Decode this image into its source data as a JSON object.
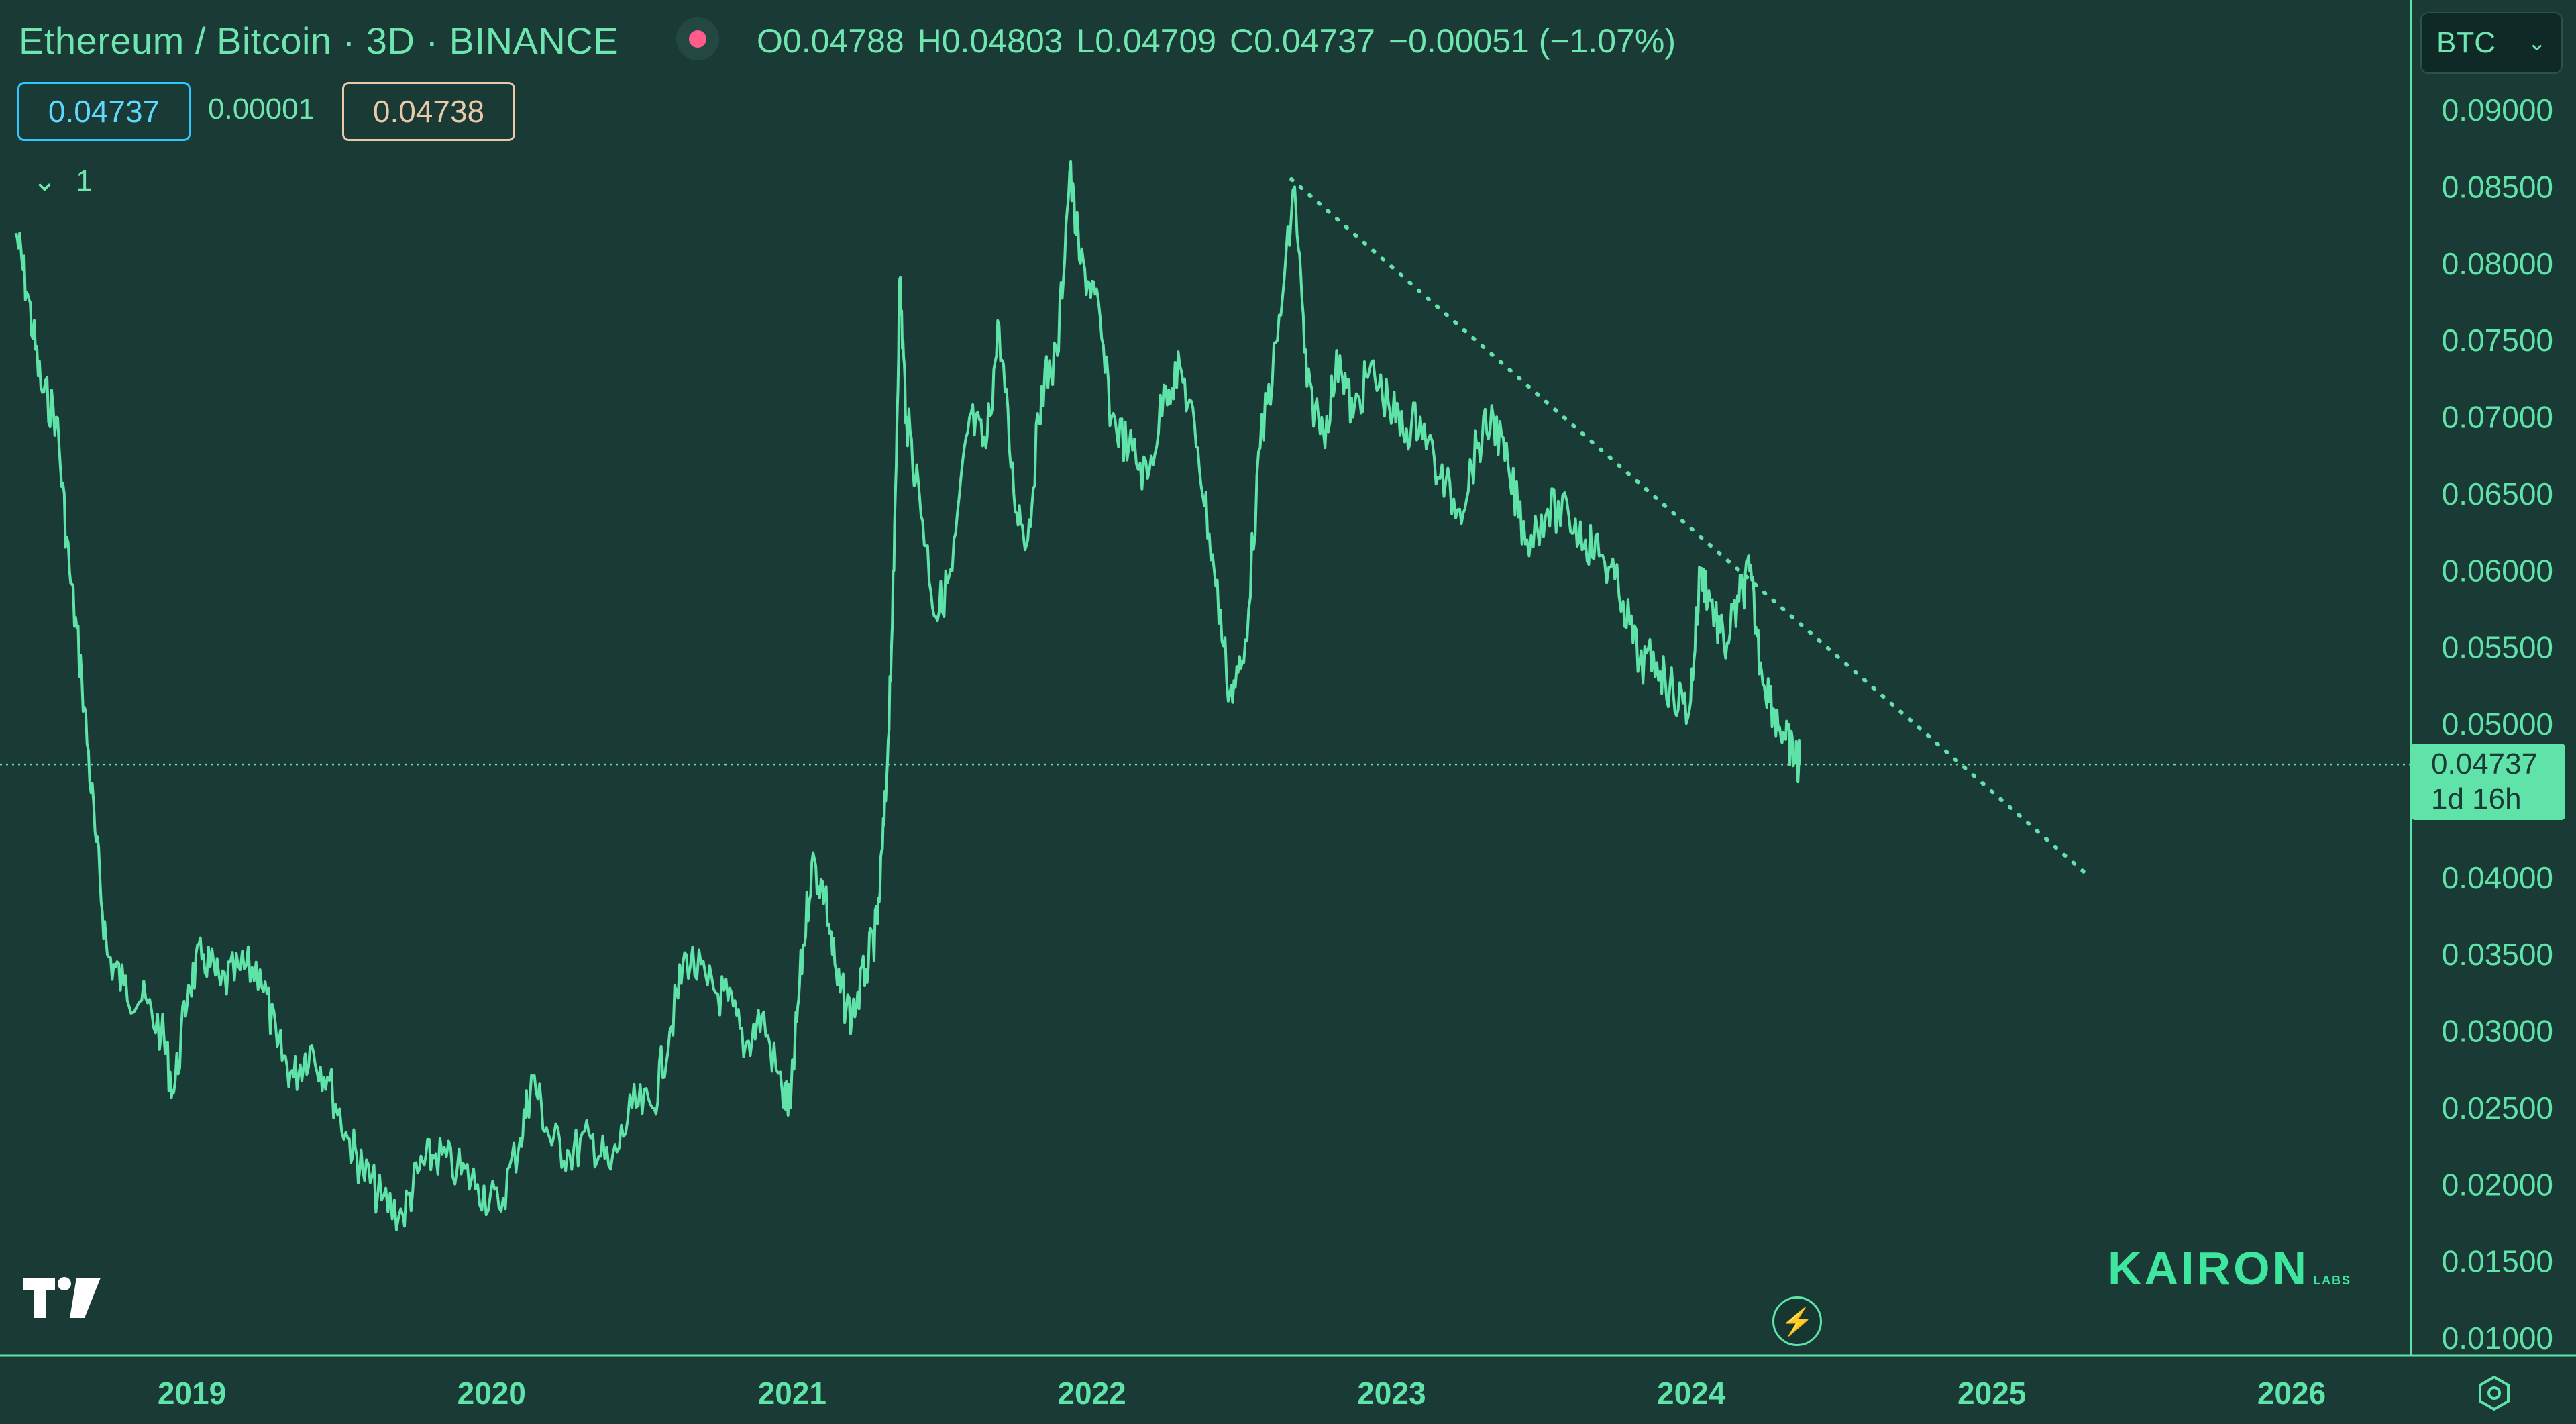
{
  "header": {
    "title": "Ethereum / Bitcoin · 3D · BINANCE",
    "ohlc": {
      "open": "O0.04788",
      "high": "H0.04803",
      "low": "L0.04709",
      "close": "C0.04737",
      "change": "−0.00051 (−1.07%)"
    },
    "bid": "0.04737",
    "spread": "0.00001",
    "ask": "0.04738",
    "indicator_toggle": "1",
    "currency": "BTC"
  },
  "price_tag": {
    "price": "0.04737",
    "countdown": "1d 16h"
  },
  "brand": {
    "name": "KAIRON",
    "suffix": "LABS"
  },
  "icons": {
    "logo": "tradingview-logo-icon",
    "status": "market-status-dot-icon",
    "lightning": "lightning-icon",
    "settings": "settings-gear-icon",
    "currency": "chevron-down-icon"
  },
  "colors": {
    "background": "#1a3a35",
    "line": "#5fe3a8",
    "bid": "#2ec7ff",
    "ask": "#e8c9a8",
    "status_dot": "#ff5c8a"
  },
  "chart_data": {
    "type": "line",
    "title": "Ethereum / Bitcoin · 3D · BINANCE",
    "series": [
      {
        "values": [
          [
            "2018-06-01",
            0.082
          ],
          [
            "2018-06-15",
            0.078
          ],
          [
            "2018-07-01",
            0.072
          ],
          [
            "2018-07-20",
            0.07
          ],
          [
            "2018-08-05",
            0.06
          ],
          [
            "2018-08-20",
            0.053
          ],
          [
            "2018-09-05",
            0.043
          ],
          [
            "2018-09-20",
            0.035
          ],
          [
            "2018-10-10",
            0.033
          ],
          [
            "2018-11-01",
            0.032
          ],
          [
            "2018-11-25",
            0.03
          ],
          [
            "2018-12-10",
            0.026
          ],
          [
            "2018-12-28",
            0.033
          ],
          [
            "2019-01-15",
            0.035
          ],
          [
            "2019-02-05",
            0.033
          ],
          [
            "2019-03-01",
            0.034
          ],
          [
            "2019-03-25",
            0.034
          ],
          [
            "2019-04-15",
            0.029
          ],
          [
            "2019-05-05",
            0.027
          ],
          [
            "2019-05-25",
            0.029
          ],
          [
            "2019-06-15",
            0.027
          ],
          [
            "2019-07-10",
            0.023
          ],
          [
            "2019-07-28",
            0.021
          ],
          [
            "2019-08-20",
            0.019
          ],
          [
            "2019-09-15",
            0.018
          ],
          [
            "2019-10-05",
            0.021
          ],
          [
            "2019-10-25",
            0.022
          ],
          [
            "2019-11-20",
            0.021
          ],
          [
            "2019-12-15",
            0.02
          ],
          [
            "2020-01-10",
            0.0185
          ],
          [
            "2020-02-05",
            0.023
          ],
          [
            "2020-02-20",
            0.027
          ],
          [
            "2020-03-12",
            0.023
          ],
          [
            "2020-04-05",
            0.022
          ],
          [
            "2020-05-01",
            0.023
          ],
          [
            "2020-05-25",
            0.021
          ],
          [
            "2020-06-20",
            0.025
          ],
          [
            "2020-07-15",
            0.025
          ],
          [
            "2020-08-05",
            0.03
          ],
          [
            "2020-08-25",
            0.035
          ],
          [
            "2020-09-20",
            0.033
          ],
          [
            "2020-10-15",
            0.032
          ],
          [
            "2020-11-05",
            0.029
          ],
          [
            "2020-11-25",
            0.031
          ],
          [
            "2020-12-20",
            0.026
          ],
          [
            "2020-12-30",
            0.025
          ],
          [
            "2021-01-10",
            0.033
          ],
          [
            "2021-01-25",
            0.041
          ],
          [
            "2021-02-10",
            0.039
          ],
          [
            "2021-02-25",
            0.033
          ],
          [
            "2021-03-15",
            0.031
          ],
          [
            "2021-04-01",
            0.034
          ],
          [
            "2021-04-15",
            0.037
          ],
          [
            "2021-04-25",
            0.045
          ],
          [
            "2021-05-05",
            0.06
          ],
          [
            "2021-05-12",
            0.079
          ],
          [
            "2021-05-20",
            0.07
          ],
          [
            "2021-06-05",
            0.065
          ],
          [
            "2021-06-25",
            0.057
          ],
          [
            "2021-07-15",
            0.06
          ],
          [
            "2021-08-05",
            0.07
          ],
          [
            "2021-08-25",
            0.068
          ],
          [
            "2021-09-10",
            0.076
          ],
          [
            "2021-09-28",
            0.065
          ],
          [
            "2021-10-15",
            0.062
          ],
          [
            "2021-11-01",
            0.072
          ],
          [
            "2021-11-20",
            0.074
          ],
          [
            "2021-12-05",
            0.086
          ],
          [
            "2021-12-18",
            0.08
          ],
          [
            "2022-01-05",
            0.078
          ],
          [
            "2022-01-25",
            0.07
          ],
          [
            "2022-02-15",
            0.068
          ],
          [
            "2022-03-10",
            0.066
          ],
          [
            "2022-04-01",
            0.072
          ],
          [
            "2022-04-20",
            0.073
          ],
          [
            "2022-05-10",
            0.068
          ],
          [
            "2022-05-30",
            0.06
          ],
          [
            "2022-06-18",
            0.052
          ],
          [
            "2022-07-05",
            0.054
          ],
          [
            "2022-07-25",
            0.068
          ],
          [
            "2022-08-15",
            0.075
          ],
          [
            "2022-09-05",
            0.085
          ],
          [
            "2022-09-20",
            0.072
          ],
          [
            "2022-10-10",
            0.069
          ],
          [
            "2022-10-30",
            0.074
          ],
          [
            "2022-11-15",
            0.07
          ],
          [
            "2022-12-05",
            0.073
          ],
          [
            "2022-12-28",
            0.071
          ],
          [
            "2023-01-15",
            0.069
          ],
          [
            "2023-02-05",
            0.07
          ],
          [
            "2023-03-01",
            0.066
          ],
          [
            "2023-03-25",
            0.064
          ],
          [
            "2023-04-15",
            0.068
          ],
          [
            "2023-05-05",
            0.07
          ],
          [
            "2023-05-25",
            0.066
          ],
          [
            "2023-06-15",
            0.062
          ],
          [
            "2023-07-10",
            0.064
          ],
          [
            "2023-08-05",
            0.0635
          ],
          [
            "2023-08-25",
            0.062
          ],
          [
            "2023-09-15",
            0.061
          ],
          [
            "2023-10-10",
            0.058
          ],
          [
            "2023-10-30",
            0.054
          ],
          [
            "2023-11-20",
            0.054
          ],
          [
            "2023-12-10",
            0.052
          ],
          [
            "2023-12-30",
            0.051
          ],
          [
            "2024-01-12",
            0.06
          ],
          [
            "2024-01-25",
            0.058
          ],
          [
            "2024-02-10",
            0.055
          ],
          [
            "2024-02-28",
            0.058
          ],
          [
            "2024-03-12",
            0.06
          ],
          [
            "2024-03-25",
            0.054
          ],
          [
            "2024-04-10",
            0.051
          ],
          [
            "2024-04-25",
            0.049
          ],
          [
            "2024-05-05",
            0.048
          ],
          [
            "2024-05-12",
            0.04737
          ]
        ]
      }
    ],
    "trendline": {
      "start": [
        "2022-09-01",
        0.0855
      ],
      "end": [
        "2025-05-01",
        0.04
      ],
      "style": "dotted"
    },
    "last_price": 0.04737,
    "x_tick_labels": [
      "2019",
      "2020",
      "2021",
      "2022",
      "2023",
      "2024",
      "2025",
      "2026"
    ],
    "x_ticks": [
      "2019-01-01",
      "2020-01-01",
      "2021-01-01",
      "2022-01-01",
      "2023-01-01",
      "2024-01-01",
      "2025-01-01",
      "2026-01-01"
    ],
    "y_tick_labels": [
      "0.09000",
      "0.08500",
      "0.08000",
      "0.07500",
      "0.07000",
      "0.06500",
      "0.06000",
      "0.05500",
      "0.05000",
      "0.04000",
      "0.03500",
      "0.03000",
      "0.02500",
      "0.02000",
      "0.01500",
      "0.01000"
    ],
    "y_ticks": [
      0.09,
      0.085,
      0.08,
      0.075,
      0.07,
      0.065,
      0.06,
      0.055,
      0.05,
      0.04,
      0.035,
      0.03,
      0.025,
      0.02,
      0.015,
      0.01
    ],
    "xlim": [
      "2018-06-01",
      "2026-06-01"
    ],
    "ylim": [
      0.0095,
      0.0915
    ],
    "grid": false,
    "ylabel": "",
    "xlabel": ""
  }
}
